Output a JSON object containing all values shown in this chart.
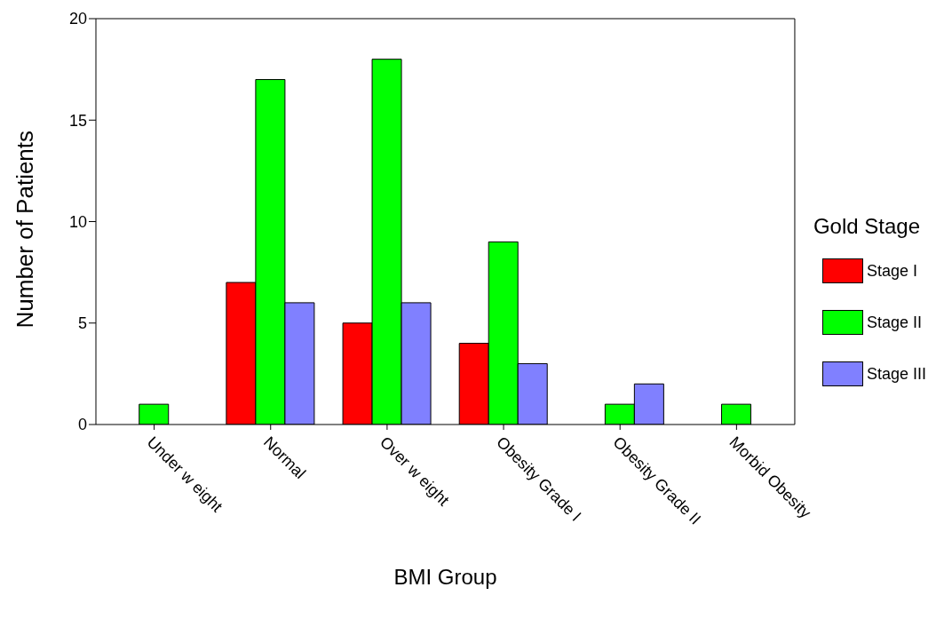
{
  "chart_data": {
    "type": "bar",
    "xlabel": "BMI Group",
    "ylabel": "Number of Patients",
    "legend_title": "Gold Stage",
    "categories": [
      "Under w eight",
      "Normal",
      "Over w eight",
      "Obesity Grade I",
      "Obesity Grade II",
      "Morbid Obesity"
    ],
    "series": [
      {
        "name": "Stage I",
        "color": "#ff0000",
        "values": [
          0,
          7,
          5,
          4,
          0,
          0
        ]
      },
      {
        "name": "Stage II",
        "color": "#00ff00",
        "values": [
          1,
          17,
          18,
          9,
          1,
          1
        ]
      },
      {
        "name": "Stage III",
        "color": "#8080ff",
        "values": [
          0,
          6,
          6,
          3,
          2,
          0
        ]
      }
    ],
    "ylim": [
      0,
      20
    ],
    "yticks": [
      0,
      5,
      10,
      15,
      20
    ],
    "grid": false,
    "legend": "right"
  }
}
